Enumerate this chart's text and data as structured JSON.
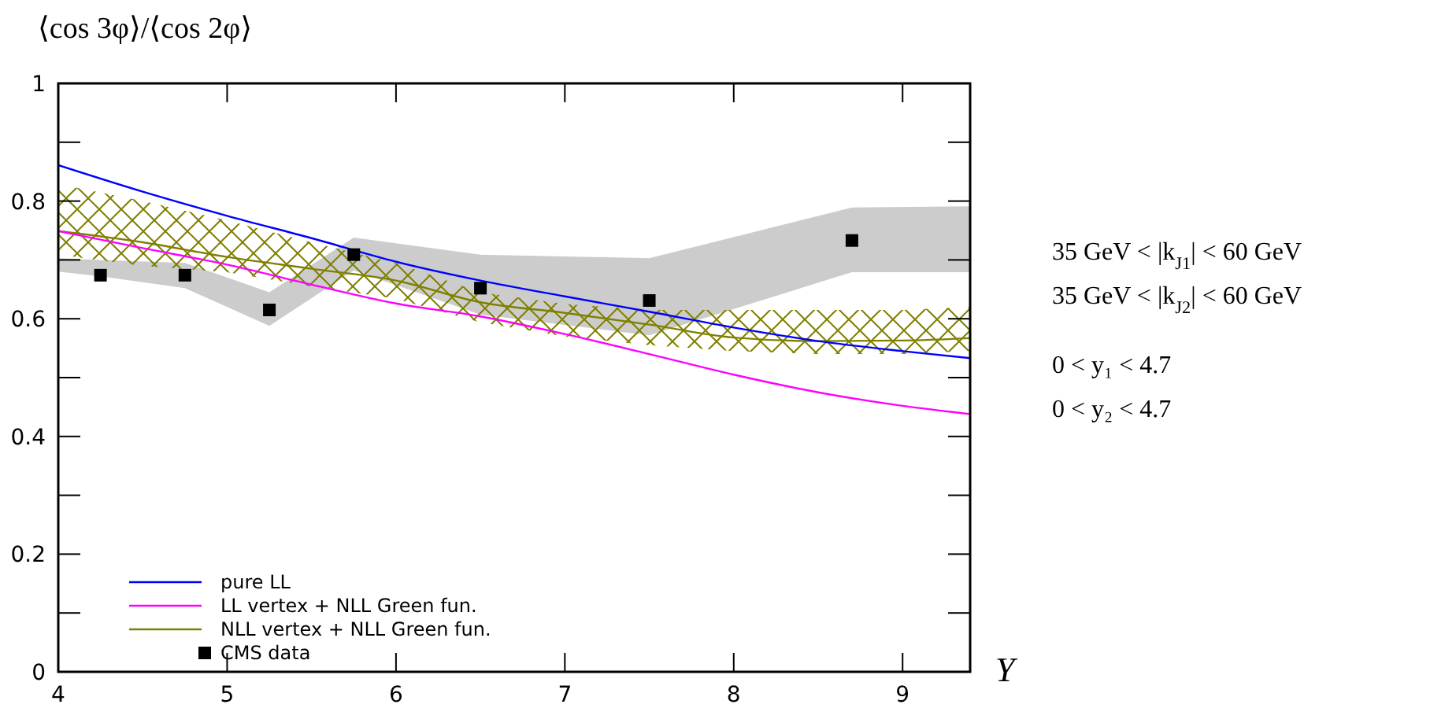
{
  "chart_data": {
    "type": "line",
    "ylabel": "⟨cos 3φ⟩/⟨cos 2φ⟩",
    "xlabel": "Y",
    "xlim": [
      4,
      9.4
    ],
    "xticks": [
      4,
      5,
      6,
      7,
      8,
      9
    ],
    "ylim": [
      0,
      1
    ],
    "yticks": [
      0,
      {
        "value": 0.1,
        "label": null
      },
      0.2,
      {
        "value": 0.3,
        "label": null
      },
      0.4,
      {
        "value": 0.5,
        "label": null
      },
      0.6,
      {
        "value": 0.7,
        "label": null
      },
      0.8,
      {
        "value": 0.9,
        "label": null
      },
      1
    ],
    "grid": false,
    "legend": "bottom left",
    "line_style": "solid",
    "annotations": [
      "35 GeV < |k$_{J1}$| < 60 GeV",
      "35 GeV < |k$_{J2}$| < 60 GeV",
      "0 < y₁ < 4.7",
      "0 < y₂ < 4.7"
    ],
    "series": [
      {
        "name": "pure LL",
        "color": "#0000ff",
        "marker": "none",
        "x": [
          4,
          4.5,
          5,
          5.5,
          6,
          6.5,
          7,
          7.5,
          8,
          8.5,
          9,
          9.4
        ],
        "values": [
          0.861,
          0.816,
          0.775,
          0.737,
          0.697,
          0.665,
          0.638,
          0.612,
          0.585,
          0.562,
          0.545,
          0.533
        ]
      },
      {
        "name": "LL vertex + NLL Green fun.",
        "color": "#ff00ff",
        "marker": "none",
        "x": [
          4,
          4.5,
          5,
          5.5,
          6,
          6.5,
          7,
          7.5,
          8,
          8.5,
          9,
          9.4
        ],
        "values": [
          0.749,
          0.72,
          0.692,
          0.658,
          0.626,
          0.604,
          0.574,
          0.54,
          0.505,
          0.475,
          0.452,
          0.438
        ]
      },
      {
        "name": "NLL vertex + NLL Green fun.",
        "color": "#808000",
        "marker": "none",
        "x": [
          4,
          4.5,
          5,
          5.5,
          6,
          6.5,
          7,
          7.5,
          8,
          8.5,
          9,
          9.4
        ],
        "values": [
          0.749,
          0.73,
          0.705,
          0.685,
          0.665,
          0.628,
          0.61,
          0.59,
          0.568,
          0.562,
          0.563,
          0.567
        ],
        "lower": [
          0.709,
          0.69,
          0.679,
          0.655,
          0.634,
          0.594,
          0.57,
          0.555,
          0.545,
          0.54,
          0.54,
          0.545
        ],
        "upper": [
          0.829,
          0.8,
          0.767,
          0.73,
          0.695,
          0.645,
          0.625,
          0.615,
          0.615,
          0.615,
          0.615,
          0.62
        ]
      },
      {
        "type": "scatter",
        "name": "CMS data",
        "color": "#000000",
        "marker": "square",
        "x": [
          4,
          4.25,
          4.75,
          5.25,
          5.75,
          6.5,
          7.5,
          8.7,
          9.4
        ],
        "values": [
          null,
          0.674,
          0.674,
          0.615,
          0.709,
          0.652,
          0.631,
          0.733,
          null
        ],
        "lower": [
          0.68,
          0.672,
          0.652,
          0.588,
          0.682,
          0.607,
          0.572,
          0.679,
          0.679
        ],
        "upper": [
          0.703,
          0.7,
          0.695,
          0.645,
          0.738,
          0.709,
          0.703,
          0.789,
          0.791
        ]
      }
    ]
  }
}
